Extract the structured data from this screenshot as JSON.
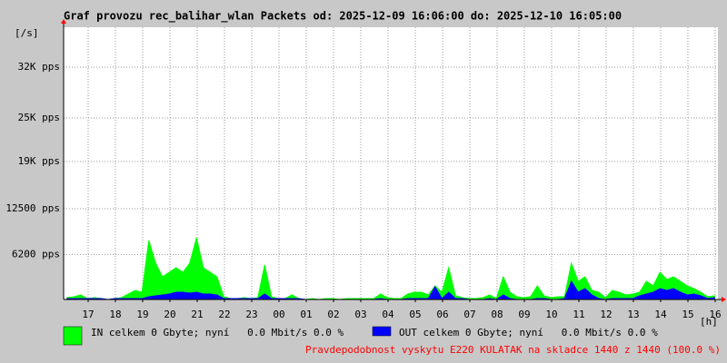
{
  "chart_data": {
    "type": "area",
    "title": "Graf provozu rec_balihar_wlan Packets od: 2025-12-09 16:06:00 do: 2025-12-10 16:05:00",
    "y_unit_label": "[/s]",
    "x_unit_label": "[h]",
    "xtick_labels": [
      "17",
      "18",
      "19",
      "20",
      "21",
      "22",
      "23",
      "00",
      "01",
      "02",
      "03",
      "04",
      "05",
      "06",
      "07",
      "08",
      "09",
      "10",
      "11",
      "12",
      "13",
      "14",
      "15",
      "16"
    ],
    "ylim": [
      0,
      37500
    ],
    "yticks": [
      {
        "value": 6200,
        "label": "6200 pps"
      },
      {
        "value": 12500,
        "label": "12500 pps"
      },
      {
        "value": 19000,
        "label": "19K pps"
      },
      {
        "value": 25000,
        "label": "25K pps"
      },
      {
        "value": 32000,
        "label": "32K pps"
      }
    ],
    "grid": true,
    "series": [
      {
        "name": "IN celkem 0 Gbyte; nyní   0.0 Mbit/s 0.0 %",
        "color": "#00ff00",
        "values": [
          250,
          375,
          625,
          125,
          250,
          125,
          0,
          125,
          250,
          750,
          1250,
          1000,
          8125,
          5000,
          3125,
          3750,
          4375,
          3750,
          5000,
          8500,
          4375,
          3750,
          3125,
          375,
          125,
          125,
          250,
          125,
          250,
          4750,
          375,
          125,
          125,
          625,
          125,
          0,
          125,
          0,
          125,
          125,
          0,
          125,
          125,
          125,
          125,
          125,
          750,
          250,
          125,
          125,
          750,
          1000,
          1000,
          625,
          1875,
          1000,
          4375,
          500,
          250,
          125,
          125,
          250,
          625,
          125,
          3125,
          1000,
          375,
          250,
          375,
          1875,
          500,
          250,
          375,
          375,
          5000,
          2500,
          3125,
          1250,
          1000,
          250,
          1250,
          1000,
          625,
          750,
          1000,
          2500,
          1875,
          3750,
          2750,
          3125,
          2500,
          1875,
          1500,
          1000,
          375,
          500
        ]
      },
      {
        "name": "OUT celkem 0 Gbyte; nyní   0.0 Mbit/s 0.0 %",
        "color": "#0000ff",
        "values": [
          125,
          125,
          125,
          125,
          125,
          125,
          0,
          125,
          125,
          125,
          125,
          125,
          375,
          500,
          625,
          750,
          1000,
          1000,
          875,
          1000,
          750,
          750,
          625,
          125,
          125,
          125,
          125,
          125,
          125,
          750,
          125,
          125,
          125,
          125,
          125,
          0,
          0,
          0,
          0,
          0,
          0,
          0,
          0,
          0,
          0,
          0,
          125,
          0,
          0,
          0,
          125,
          125,
          125,
          125,
          1750,
          125,
          1000,
          125,
          125,
          0,
          0,
          0,
          125,
          0,
          625,
          125,
          0,
          0,
          0,
          125,
          125,
          0,
          0,
          125,
          2500,
          1000,
          1500,
          625,
          125,
          0,
          125,
          125,
          125,
          125,
          500,
          750,
          1000,
          1500,
          1250,
          1500,
          1000,
          625,
          750,
          500,
          125,
          250
        ]
      }
    ],
    "footer": "Pravdepodobnost vyskytu E220 KULATAK na skladce 1440 z 1440 (100.0 %)",
    "footer_color": "#ff0000"
  }
}
